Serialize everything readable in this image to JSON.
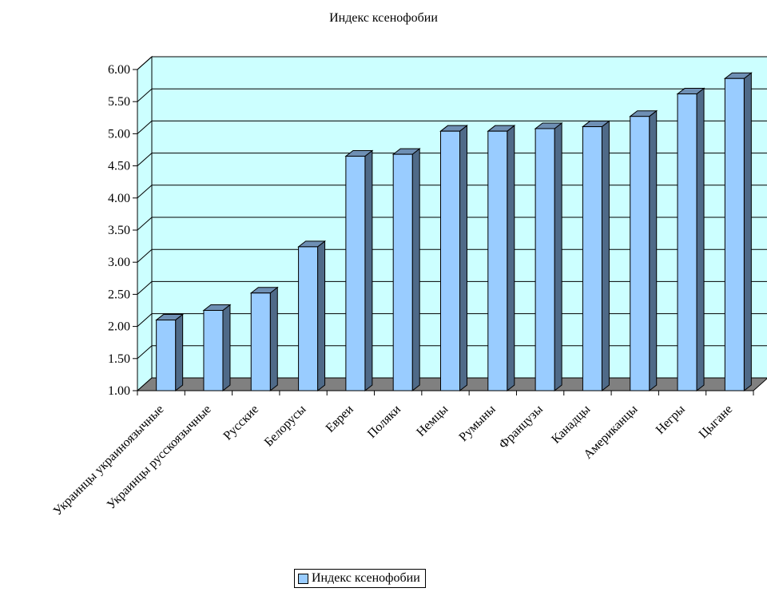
{
  "chart_data": {
    "type": "bar",
    "title": "Индекс ксенофобии",
    "xlabel": "",
    "ylabel": "",
    "categories": [
      "Украинцы украиноязычные",
      "Украинцы русскоязычные",
      "Русские",
      "Белорусы",
      "Евреи",
      "Поляки",
      "Немцы",
      "Румыны",
      "Французы",
      "Канадцы",
      "Американцы",
      "Негры",
      "Цыгане"
    ],
    "series": [
      {
        "name": "Индекс ксенофобии",
        "values": [
          2.1,
          2.25,
          2.52,
          3.24,
          4.65,
          4.68,
          5.04,
          5.04,
          5.08,
          5.11,
          5.27,
          5.62,
          5.86
        ]
      }
    ],
    "ylim": [
      1.0,
      6.0
    ],
    "yticks": [
      "1.00",
      "1.50",
      "2.00",
      "2.50",
      "3.00",
      "3.50",
      "4.00",
      "4.50",
      "5.00",
      "5.50",
      "6.00"
    ],
    "grid": true,
    "legend_position": "bottom",
    "colors": {
      "bar_front": "#99CCFF",
      "bar_side": "#4F6A88",
      "bar_top": "#6E8FB4",
      "wall": "#CCFFFF",
      "floor": "#808080"
    }
  }
}
